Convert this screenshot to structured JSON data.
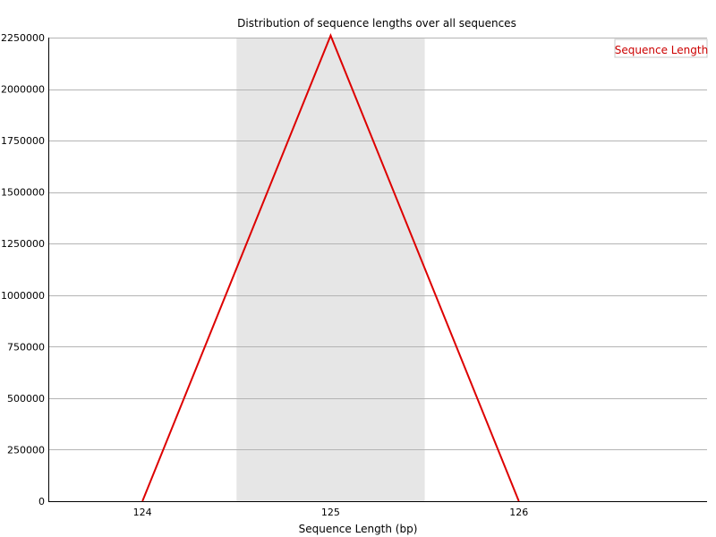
{
  "chart_data": {
    "type": "line",
    "title": "Distribution of sequence lengths over all sequences",
    "xlabel": "Sequence Length (bp)",
    "ylabel": "",
    "categories": [
      "124",
      "125",
      "126"
    ],
    "x": [
      124,
      125,
      126
    ],
    "series": [
      {
        "name": "Sequence Length",
        "values": [
          0,
          2260000,
          0
        ],
        "color": "#dd0000"
      }
    ],
    "ylim": [
      0,
      2250000
    ],
    "yticks": [
      0,
      250000,
      500000,
      750000,
      1000000,
      1250000,
      1500000,
      1750000,
      2000000,
      2250000
    ],
    "ytick_labels": [
      "0",
      "250000",
      "500000",
      "750000",
      "1000000",
      "1250000",
      "1500000",
      "1750000",
      "2000000",
      "2250000"
    ],
    "grid": true,
    "legend_position": "top-right",
    "highlight_band_category": "125",
    "colors": {
      "line": "#dd0000",
      "band": "#e6e6e6",
      "grid": "#b4b4b4",
      "legend_text": "#cc0000"
    }
  }
}
